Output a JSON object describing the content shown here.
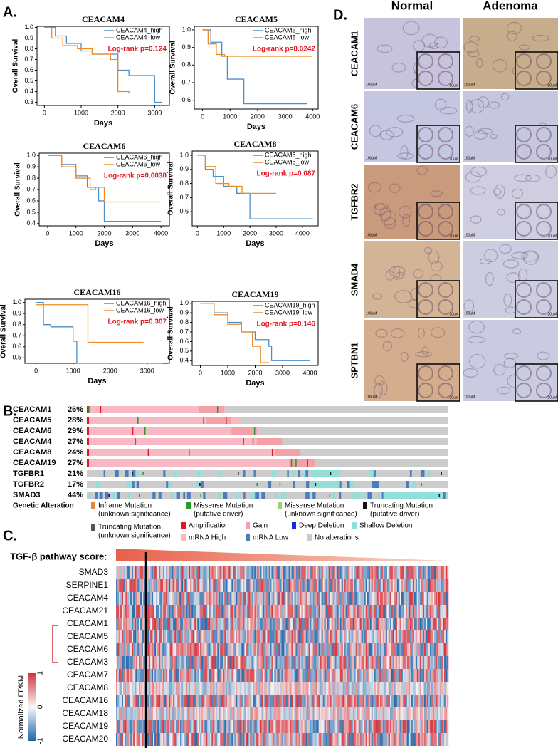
{
  "panel_labels": [
    "A.",
    "B.",
    "C.",
    "D."
  ],
  "chart_data": [
    {
      "type": "line",
      "title": "CEACAM4",
      "x_label": "Days",
      "y_label": "Overall Survival",
      "annotation": "Log-rank p=0.124",
      "xlim": [
        -200,
        3400
      ],
      "xticks": [
        0,
        1000,
        2000,
        3000
      ],
      "ylim": [
        0.27,
        1.01
      ],
      "yticks": [
        0.3,
        0.4,
        0.5,
        0.6,
        0.7,
        0.8,
        0.9,
        {
          "value": 1,
          "label": "1.0"
        }
      ],
      "series": [
        {
          "name": "CEACAM4_high",
          "color": "#4a8fc7",
          "x": [
            0,
            300,
            600,
            1000,
            1300,
            2000,
            2300,
            3000,
            3200
          ],
          "values": [
            1,
            0.92,
            0.85,
            0.78,
            0.75,
            0.6,
            0.55,
            0.3,
            0.3
          ]
        },
        {
          "name": "CEACAM4_low",
          "color": "#f08a24",
          "x": [
            0,
            200,
            500,
            900,
            1300,
            1800,
            2000,
            2300
          ],
          "values": [
            1,
            0.9,
            0.83,
            0.8,
            0.75,
            0.7,
            0.4,
            0.38
          ]
        }
      ]
    },
    {
      "type": "line",
      "title": "CEACAM5",
      "x_label": "Days",
      "y_label": "Overall Survival",
      "annotation": "Log-rank p=0.0242",
      "xlim": [
        -300,
        4200
      ],
      "xticks": [
        0,
        1000,
        2000,
        3000,
        4000
      ],
      "ylim": [
        0.55,
        1.02
      ],
      "yticks": [
        0.6,
        0.7,
        0.8,
        0.9,
        {
          "value": 1,
          "label": "1.0"
        }
      ],
      "series": [
        {
          "name": "CEACAM5_high",
          "color": "#4a8fc7",
          "x": [
            0,
            300,
            700,
            900,
            1000,
            1500,
            3800
          ],
          "values": [
            1,
            0.93,
            0.85,
            0.72,
            0.72,
            0.58,
            0.58
          ]
        },
        {
          "name": "CEACAM5_low",
          "color": "#f08a24",
          "x": [
            0,
            200,
            500,
            800,
            4000
          ],
          "values": [
            1,
            0.92,
            0.86,
            0.85,
            0.85
          ]
        }
      ]
    },
    {
      "type": "line",
      "title": "CEACAM6",
      "x_label": "Days",
      "y_label": "Overall Survival",
      "annotation": "Log-rank p=0.0038",
      "xlim": [
        -300,
        4300
      ],
      "xticks": [
        0,
        1000,
        2000,
        3000,
        4000
      ],
      "ylim": [
        0.38,
        1.02
      ],
      "yticks": [
        0.4,
        0.5,
        0.6,
        0.7,
        0.8,
        0.9,
        {
          "value": 1,
          "label": "1.0"
        }
      ],
      "series": [
        {
          "name": "CEACAM6_high",
          "color": "#4a8fc7",
          "x": [
            0,
            500,
            1000,
            1400,
            1800,
            2000,
            4000
          ],
          "values": [
            1,
            0.92,
            0.82,
            0.72,
            0.6,
            0.42,
            0.42
          ]
        },
        {
          "name": "CEACAM6_low",
          "color": "#f08a24",
          "x": [
            0,
            500,
            1000,
            1500,
            1700,
            2000,
            4000
          ],
          "values": [
            1,
            0.9,
            0.8,
            0.7,
            0.72,
            0.59,
            0.59
          ]
        }
      ]
    },
    {
      "type": "line",
      "title": "CEACAM8",
      "x_label": "Days",
      "y_label": "Overall Survival",
      "annotation": "Log-rank p=0.087",
      "xlim": [
        -200,
        4600
      ],
      "xticks": [
        0,
        1000,
        2000,
        3000,
        4000
      ],
      "ylim": [
        0.5,
        1.03
      ],
      "yticks": [
        0.6,
        0.7,
        0.8,
        0.9,
        {
          "value": 1,
          "label": "1.0"
        }
      ],
      "series": [
        {
          "name": "CEACAM8_high",
          "color": "#4a8fc7",
          "x": [
            0,
            300,
            600,
            1000,
            1500,
            2000,
            4400
          ],
          "values": [
            1,
            0.9,
            0.85,
            0.78,
            0.73,
            0.55,
            0.55
          ]
        },
        {
          "name": "CEACAM8_low",
          "color": "#f08a24",
          "x": [
            0,
            300,
            700,
            1200,
            1700,
            3000
          ],
          "values": [
            1,
            0.92,
            0.8,
            0.78,
            0.73,
            0.73
          ]
        }
      ]
    },
    {
      "type": "line",
      "title": "CEACAM16",
      "x_label": "Days",
      "y_label": "Overall Survival",
      "annotation": "Log-rank p=0.307",
      "xlim": [
        -300,
        3600
      ],
      "xticks": [
        0,
        1000,
        2000,
        3000
      ],
      "ylim": [
        0.45,
        1.03
      ],
      "yticks": [
        0.5,
        0.6,
        0.7,
        0.8,
        0.9,
        {
          "value": 1,
          "label": "1.0"
        }
      ],
      "series": [
        {
          "name": "CEACAM16_high",
          "color": "#4a8fc7",
          "x": [
            0,
            200,
            400,
            1000,
            1100,
            3400
          ],
          "values": [
            1,
            0.8,
            0.78,
            0.65,
            0.45,
            0.45
          ]
        },
        {
          "name": "CEACAM16_low",
          "color": "#f08a24",
          "x": [
            0,
            1300,
            1400,
            2900
          ],
          "values": [
            0.98,
            0.98,
            0.64,
            0.64
          ]
        }
      ]
    },
    {
      "type": "line",
      "title": "CEACAM19",
      "x_label": "Days",
      "y_label": "Overall Survival",
      "annotation": "Log-rank p=0.146",
      "xlim": [
        -300,
        4300
      ],
      "xticks": [
        0,
        1000,
        2000,
        3000,
        4000
      ],
      "ylim": [
        0.35,
        1.02
      ],
      "yticks": [
        0.4,
        0.5,
        0.6,
        0.7,
        0.8,
        0.9,
        {
          "value": 1,
          "label": "1.0"
        }
      ],
      "series": [
        {
          "name": "CEACAM19_high",
          "color": "#4a8fc7",
          "x": [
            0,
            500,
            1000,
            1500,
            2000,
            2500,
            2600,
            4000
          ],
          "values": [
            1,
            0.9,
            0.8,
            0.7,
            0.62,
            0.55,
            0.4,
            0.4
          ]
        },
        {
          "name": "CEACAM19_low",
          "color": "#f08a24",
          "x": [
            0,
            500,
            1000,
            1500,
            1900,
            2200,
            2500
          ],
          "values": [
            1,
            0.88,
            0.78,
            0.7,
            0.55,
            0.38,
            0.38
          ]
        }
      ]
    }
  ],
  "oncoprint": {
    "rows": [
      {
        "gene": "CEACAM1",
        "pct": "26%"
      },
      {
        "gene": "CEACAM5",
        "pct": "28%"
      },
      {
        "gene": "CEACAM6",
        "pct": "29%"
      },
      {
        "gene": "CEACAM4",
        "pct": "27%"
      },
      {
        "gene": "CEACAM8",
        "pct": "24%"
      },
      {
        "gene": "CEACAM19",
        "pct": "27%"
      },
      {
        "gene": "TGFBR1",
        "pct": "21%"
      },
      {
        "gene": "TGFBR2",
        "pct": "17%"
      },
      {
        "gene": "SMAD3",
        "pct": "44%"
      }
    ],
    "legend_title": "Genetic Alteration",
    "legend": [
      {
        "lines": [
          "Inframe Mutation",
          "(unknown significance)"
        ],
        "color": "#e8843c"
      },
      {
        "lines": [
          "Missense Mutation",
          "(putative driver)"
        ],
        "color": "#2a9a2a"
      },
      {
        "lines": [
          "Missense Mutation",
          "(unknown significance)"
        ],
        "color": "#9ad07a"
      },
      {
        "lines": [
          "Truncating Mutation",
          "(putative driver)"
        ],
        "color": "#111111"
      },
      {
        "lines": [
          "Truncating Mutation",
          "(unknown significance)"
        ],
        "color": "#555555"
      },
      {
        "lines": [
          "Amplification"
        ],
        "color": "#e8141e"
      },
      {
        "lines": [
          "Gain"
        ],
        "color": "#f4a0a8"
      },
      {
        "lines": [
          "Deep Deletion"
        ],
        "color": "#1428e0"
      },
      {
        "lines": [
          "Shallow Deletion"
        ],
        "color": "#8ee0d8"
      },
      {
        "lines": [
          "mRNA High"
        ],
        "color": "#f8b8c4"
      },
      {
        "lines": [
          "mRNA Low"
        ],
        "color": "#4a7cc0"
      },
      {
        "lines": [
          "No alterations"
        ],
        "color": "#cccccc"
      }
    ]
  },
  "heatmap": {
    "title": "TGF-β pathway score:",
    "rows": [
      "SMAD3",
      "SERPINE1",
      "CEACAM4",
      "CEACAM21",
      "CEACAM1",
      "CEACAM5",
      "CEACAM6",
      "CEACAM3",
      "CEACAM7",
      "CEACAM8",
      "CEACAM16",
      "CEACAM18",
      "CEACAM19",
      "CEACAM20"
    ],
    "colorbar": {
      "label": "Normalized FPKM",
      "ticks": [
        1,
        0,
        -1
      ],
      "colors": [
        "#2166ac",
        "#f7f7f7",
        "#d6323a"
      ]
    }
  },
  "ihc": {
    "columns": [
      "Normal",
      "Adenoma"
    ],
    "rows": [
      "CEACAM1",
      "CEACAM6",
      "TGFBR2",
      "SMAD4",
      "SPTBN1"
    ],
    "scale_labels": [
      "100uM",
      "20uM"
    ]
  }
}
